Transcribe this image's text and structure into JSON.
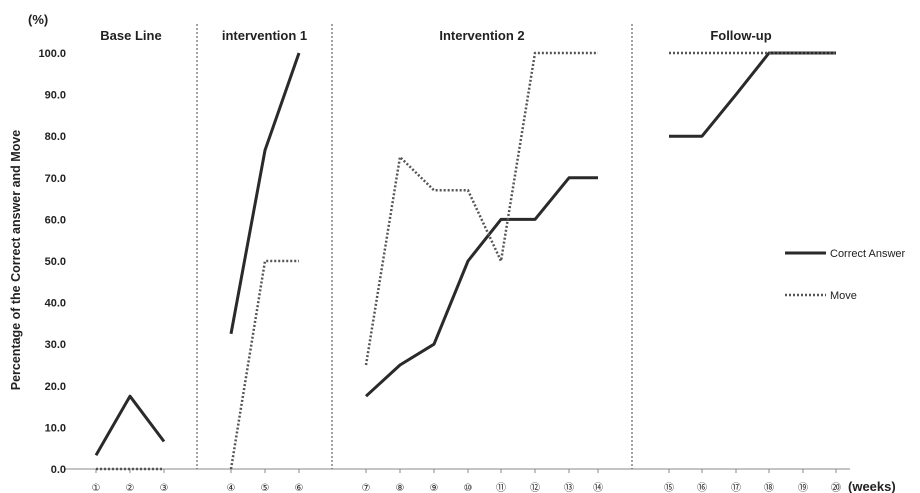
{
  "chart_data": {
    "type": "line",
    "title": "",
    "ylabel": "Percentage of the Correct answer  and Move",
    "y_unit": "(%)",
    "x_unit": "(weeks)",
    "ylim": [
      0,
      100
    ],
    "y_ticks": [
      "0.0",
      "10.0",
      "20.0",
      "30.0",
      "40.0",
      "50.0",
      "60.0",
      "70.0",
      "80.0",
      "90.0",
      "100.0"
    ],
    "categories": [
      "①",
      "②",
      "③",
      "④",
      "⑤",
      "⑥",
      "⑦",
      "⑧",
      "⑨",
      "⑩",
      "⑪",
      "⑫",
      "⑬",
      "⑭",
      "⑮",
      "⑯",
      "⑰",
      "⑱",
      "⑲",
      "⑳"
    ],
    "phases": [
      {
        "label": "Base Line",
        "weeks": [
          1,
          2,
          3
        ]
      },
      {
        "label": "intervention 1",
        "weeks": [
          4,
          5,
          6
        ]
      },
      {
        "label": "Intervention 2",
        "weeks": [
          7,
          8,
          9,
          10,
          11,
          12,
          13,
          14
        ]
      },
      {
        "label": "Follow-up",
        "weeks": [
          15,
          16,
          17,
          18,
          19,
          20
        ]
      }
    ],
    "series": [
      {
        "name": "Correct Answer",
        "style": "solid",
        "segments": [
          {
            "x": [
              1,
              2,
              3
            ],
            "y": [
              3.3,
              17.5,
              6.6
            ]
          },
          {
            "x": [
              4,
              5,
              6
            ],
            "y": [
              32.5,
              76.6,
              100
            ]
          },
          {
            "x": [
              7,
              8,
              9,
              10,
              11,
              12,
              13,
              14
            ],
            "y": [
              17.5,
              25,
              30,
              50,
              60,
              60,
              70,
              70
            ]
          },
          {
            "x": [
              15,
              16,
              17,
              18,
              19,
              20
            ],
            "y": [
              80,
              80,
              90,
              100,
              100,
              100
            ]
          }
        ]
      },
      {
        "name": "Move",
        "style": "dotted",
        "segments": [
          {
            "x": [
              1,
              2,
              3
            ],
            "y": [
              0,
              0,
              0
            ]
          },
          {
            "x": [
              4,
              5,
              6
            ],
            "y": [
              0,
              50,
              50
            ]
          },
          {
            "x": [
              7,
              8,
              9,
              10,
              11,
              12,
              13,
              14
            ],
            "y": [
              25,
              75,
              67,
              67,
              50,
              100,
              100,
              100
            ]
          },
          {
            "x": [
              15,
              16,
              17,
              18,
              19,
              20
            ],
            "y": [
              100,
              100,
              100,
              100,
              100,
              100
            ]
          }
        ]
      }
    ],
    "legend": {
      "position": "right",
      "entries": [
        "Correct Answer",
        "Move"
      ]
    },
    "grid": false
  }
}
